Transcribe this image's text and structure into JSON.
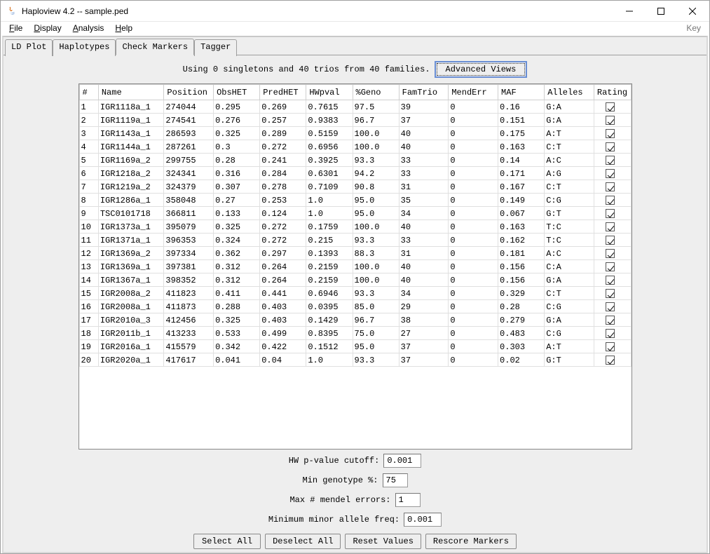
{
  "window": {
    "title": "Haploview 4.2 -- sample.ped"
  },
  "menubar": {
    "items": [
      {
        "label": "File",
        "ukey": "F"
      },
      {
        "label": "Display",
        "ukey": "D"
      },
      {
        "label": "Analysis",
        "ukey": "A"
      },
      {
        "label": "Help",
        "ukey": "H"
      }
    ],
    "right": "Key"
  },
  "tabs": {
    "items": [
      "LD Plot",
      "Haplotypes",
      "Check Markers",
      "Tagger"
    ],
    "active_index": 2
  },
  "info": {
    "text": "Using 0 singletons and 40 trios from 40 families.",
    "button": "Advanced Views"
  },
  "table": {
    "columns": [
      "#",
      "Name",
      "Position",
      "ObsHET",
      "PredHET",
      "HWpval",
      "%Geno",
      "FamTrio",
      "MendErr",
      "MAF",
      "Alleles",
      "Rating"
    ],
    "column_styles": {
      "header_bg": "#ffffff",
      "border_color": "#cfcfcf",
      "row_border_color": "#e0e0e0",
      "font": "Courier New",
      "font_size": 12
    },
    "rows": [
      {
        "n": "1",
        "name": "IGR1118a_1",
        "pos": "274044",
        "obs": "0.295",
        "pred": "0.269",
        "hw": "0.7615",
        "geno": "97.5",
        "fam": "39",
        "mend": "0",
        "maf": "0.16",
        "all": "G:A",
        "rating": true
      },
      {
        "n": "2",
        "name": "IGR1119a_1",
        "pos": "274541",
        "obs": "0.276",
        "pred": "0.257",
        "hw": "0.9383",
        "geno": "96.7",
        "fam": "37",
        "mend": "0",
        "maf": "0.151",
        "all": "G:A",
        "rating": true
      },
      {
        "n": "3",
        "name": "IGR1143a_1",
        "pos": "286593",
        "obs": "0.325",
        "pred": "0.289",
        "hw": "0.5159",
        "geno": "100.0",
        "fam": "40",
        "mend": "0",
        "maf": "0.175",
        "all": "A:T",
        "rating": true
      },
      {
        "n": "4",
        "name": "IGR1144a_1",
        "pos": "287261",
        "obs": "0.3",
        "pred": "0.272",
        "hw": "0.6956",
        "geno": "100.0",
        "fam": "40",
        "mend": "0",
        "maf": "0.163",
        "all": "C:T",
        "rating": true
      },
      {
        "n": "5",
        "name": "IGR1169a_2",
        "pos": "299755",
        "obs": "0.28",
        "pred": "0.241",
        "hw": "0.3925",
        "geno": "93.3",
        "fam": "33",
        "mend": "0",
        "maf": "0.14",
        "all": "A:C",
        "rating": true
      },
      {
        "n": "6",
        "name": "IGR1218a_2",
        "pos": "324341",
        "obs": "0.316",
        "pred": "0.284",
        "hw": "0.6301",
        "geno": "94.2",
        "fam": "33",
        "mend": "0",
        "maf": "0.171",
        "all": "A:G",
        "rating": true
      },
      {
        "n": "7",
        "name": "IGR1219a_2",
        "pos": "324379",
        "obs": "0.307",
        "pred": "0.278",
        "hw": "0.7109",
        "geno": "90.8",
        "fam": "31",
        "mend": "0",
        "maf": "0.167",
        "all": "C:T",
        "rating": true
      },
      {
        "n": "8",
        "name": "IGR1286a_1",
        "pos": "358048",
        "obs": "0.27",
        "pred": "0.253",
        "hw": "1.0",
        "geno": "95.0",
        "fam": "35",
        "mend": "0",
        "maf": "0.149",
        "all": "C:G",
        "rating": true
      },
      {
        "n": "9",
        "name": "TSC0101718",
        "pos": "366811",
        "obs": "0.133",
        "pred": "0.124",
        "hw": "1.0",
        "geno": "95.0",
        "fam": "34",
        "mend": "0",
        "maf": "0.067",
        "all": "G:T",
        "rating": true
      },
      {
        "n": "10",
        "name": "IGR1373a_1",
        "pos": "395079",
        "obs": "0.325",
        "pred": "0.272",
        "hw": "0.1759",
        "geno": "100.0",
        "fam": "40",
        "mend": "0",
        "maf": "0.163",
        "all": "T:C",
        "rating": true
      },
      {
        "n": "11",
        "name": "IGR1371a_1",
        "pos": "396353",
        "obs": "0.324",
        "pred": "0.272",
        "hw": "0.215",
        "geno": "93.3",
        "fam": "33",
        "mend": "0",
        "maf": "0.162",
        "all": "T:C",
        "rating": true
      },
      {
        "n": "12",
        "name": "IGR1369a_2",
        "pos": "397334",
        "obs": "0.362",
        "pred": "0.297",
        "hw": "0.1393",
        "geno": "88.3",
        "fam": "31",
        "mend": "0",
        "maf": "0.181",
        "all": "A:C",
        "rating": true
      },
      {
        "n": "13",
        "name": "IGR1369a_1",
        "pos": "397381",
        "obs": "0.312",
        "pred": "0.264",
        "hw": "0.2159",
        "geno": "100.0",
        "fam": "40",
        "mend": "0",
        "maf": "0.156",
        "all": "C:A",
        "rating": true
      },
      {
        "n": "14",
        "name": "IGR1367a_1",
        "pos": "398352",
        "obs": "0.312",
        "pred": "0.264",
        "hw": "0.2159",
        "geno": "100.0",
        "fam": "40",
        "mend": "0",
        "maf": "0.156",
        "all": "G:A",
        "rating": true
      },
      {
        "n": "15",
        "name": "IGR2008a_2",
        "pos": "411823",
        "obs": "0.411",
        "pred": "0.441",
        "hw": "0.6946",
        "geno": "93.3",
        "fam": "34",
        "mend": "0",
        "maf": "0.329",
        "all": "C:T",
        "rating": true
      },
      {
        "n": "16",
        "name": "IGR2008a_1",
        "pos": "411873",
        "obs": "0.288",
        "pred": "0.403",
        "hw": "0.0395",
        "geno": "85.0",
        "fam": "29",
        "mend": "0",
        "maf": "0.28",
        "all": "C:G",
        "rating": true
      },
      {
        "n": "17",
        "name": "IGR2010a_3",
        "pos": "412456",
        "obs": "0.325",
        "pred": "0.403",
        "hw": "0.1429",
        "geno": "96.7",
        "fam": "38",
        "mend": "0",
        "maf": "0.279",
        "all": "G:A",
        "rating": true
      },
      {
        "n": "18",
        "name": "IGR2011b_1",
        "pos": "413233",
        "obs": "0.533",
        "pred": "0.499",
        "hw": "0.8395",
        "geno": "75.0",
        "fam": "27",
        "mend": "0",
        "maf": "0.483",
        "all": "C:G",
        "rating": true
      },
      {
        "n": "19",
        "name": "IGR2016a_1",
        "pos": "415579",
        "obs": "0.342",
        "pred": "0.422",
        "hw": "0.1512",
        "geno": "95.0",
        "fam": "37",
        "mend": "0",
        "maf": "0.303",
        "all": "A:T",
        "rating": true
      },
      {
        "n": "20",
        "name": "IGR2020a_1",
        "pos": "417617",
        "obs": "0.041",
        "pred": "0.04",
        "hw": "1.0",
        "geno": "93.3",
        "fam": "37",
        "mend": "0",
        "maf": "0.02",
        "all": "G:T",
        "rating": true
      }
    ]
  },
  "filters": {
    "hw_label": "HW p-value cutoff:",
    "hw_value": "0.001",
    "geno_label": "Min genotype %:",
    "geno_value": "75",
    "mendel_label": "Max # mendel errors:",
    "mendel_value": "1",
    "maf_label": "Minimum minor allele freq:",
    "maf_value": "0.001"
  },
  "buttons": {
    "select_all": "Select All",
    "deselect_all": "Deselect All",
    "reset": "Reset Values",
    "rescore": "Rescore Markers"
  },
  "colors": {
    "window_border": "#a0a0a0",
    "panel_bg": "#eeeeee",
    "accent_border": "#6a8fd4"
  }
}
